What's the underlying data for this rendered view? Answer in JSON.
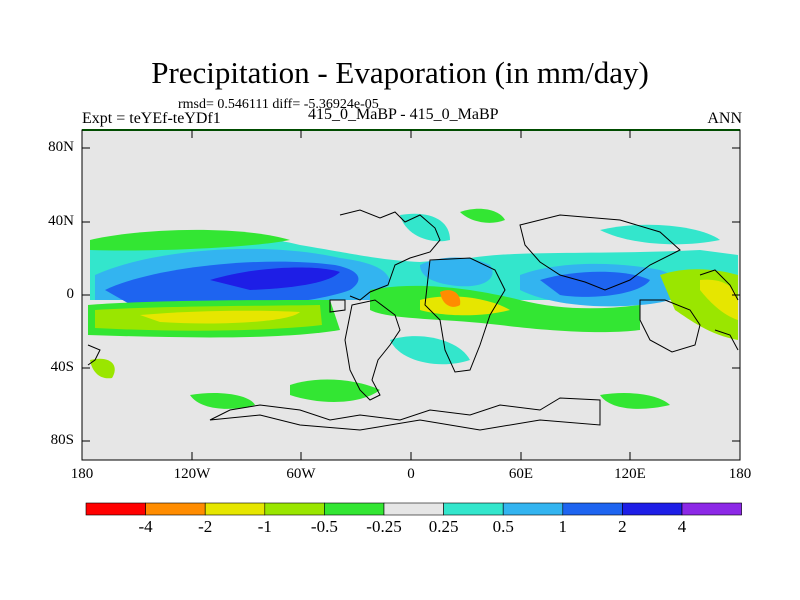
{
  "header": {
    "title": "Precipitation - Evaporation (in mm/day)",
    "stats": "rmsd= 0.546111 diff= -5.36924e-05",
    "expt": "Expt = teYEf-teYDf1",
    "case": "415_0_MaBP - 415_0_MaBP",
    "season": "ANN"
  },
  "axes": {
    "lat_labels": [
      "80N",
      "40N",
      "0",
      "40S",
      "80S"
    ],
    "lon_labels": [
      "180",
      "120W",
      "60W",
      "0",
      "60E",
      "120E",
      "180"
    ]
  },
  "colorbar": {
    "labels": [
      "-4",
      "-2",
      "-1",
      "-0.5",
      "-0.25",
      "0.25",
      "0.5",
      "1",
      "2",
      "4"
    ],
    "colors": [
      "#ff0000",
      "#ff8c00",
      "#e6e600",
      "#9ae600",
      "#33e633",
      "#e6e6e6",
      "#33e6cc",
      "#33b4f0",
      "#1e64f0",
      "#1e1ee6",
      "#8c28e6"
    ]
  },
  "palette": {
    "land_outline": "#000000",
    "frame_top": "#009900",
    "background": "#e6e6e6"
  }
}
